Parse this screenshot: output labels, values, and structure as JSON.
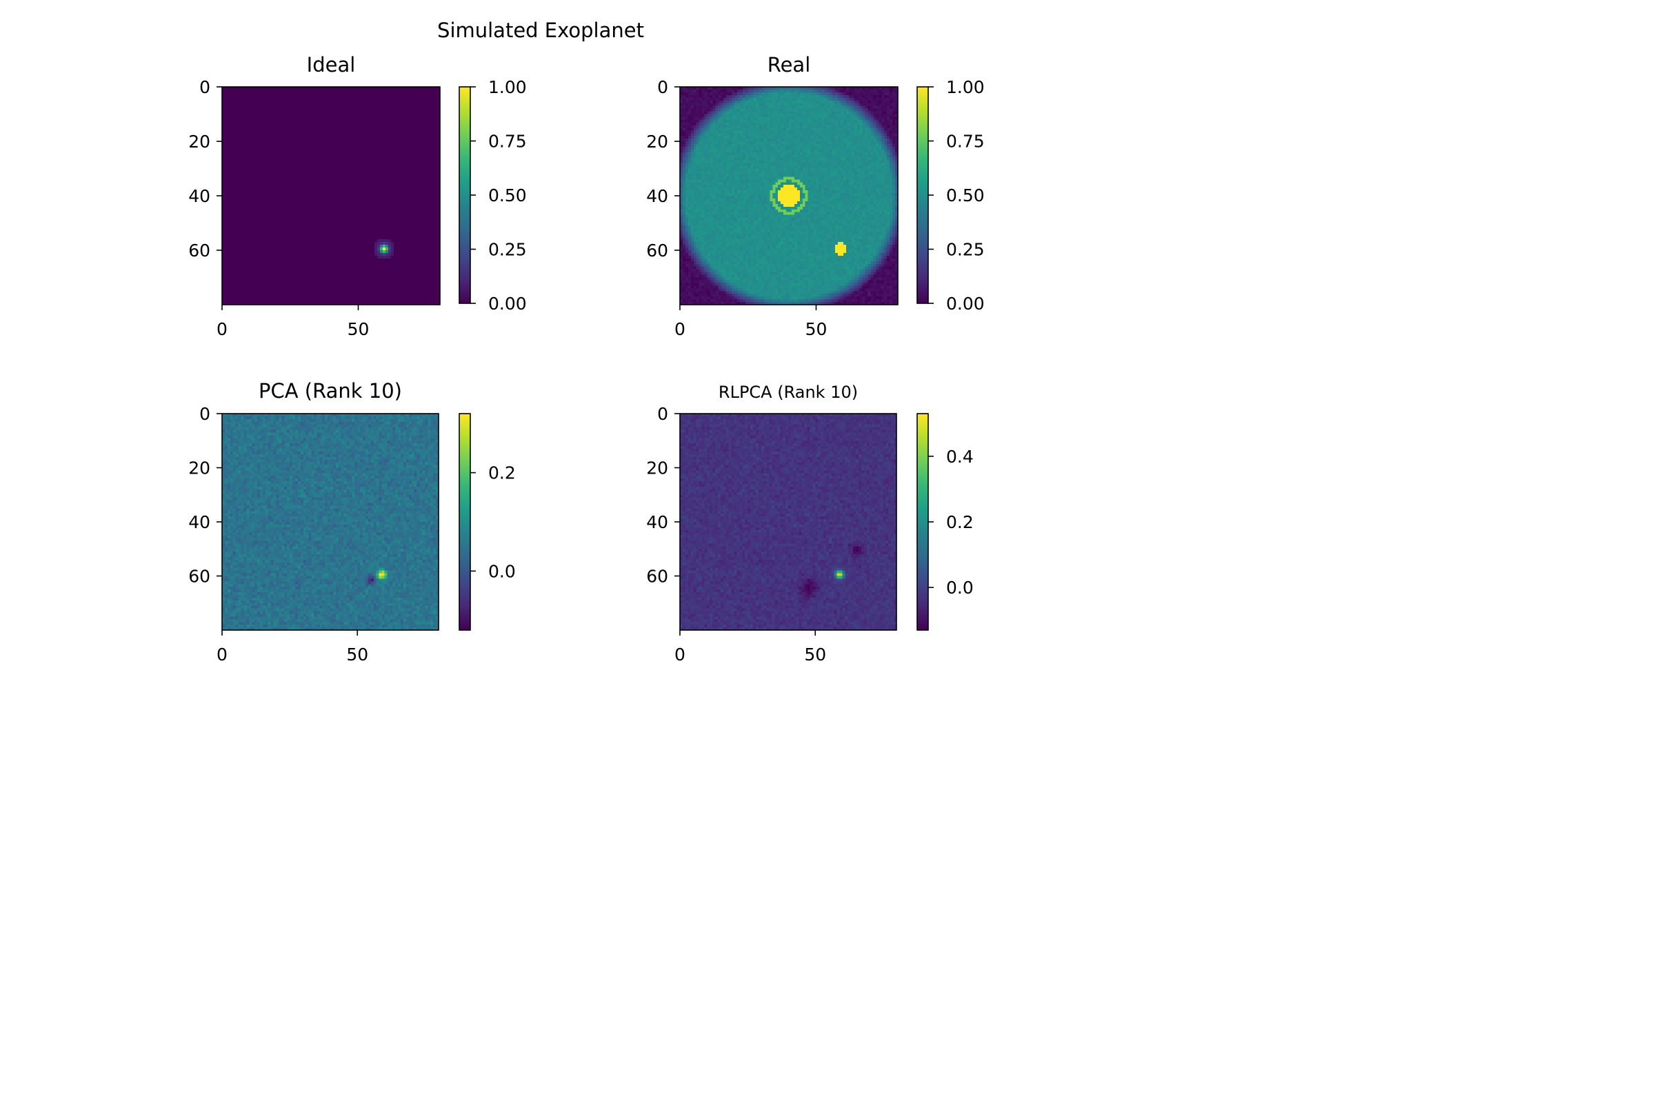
{
  "figure": {
    "suptitle": "Simulated Exoplanet"
  },
  "colormap": [
    "#440154",
    "#482878",
    "#3e4989",
    "#31688e",
    "#26828e",
    "#1f9e89",
    "#35b779",
    "#6ece58",
    "#b5de2b",
    "#fde725"
  ],
  "chart_data": [
    {
      "type": "heatmap",
      "id": "ideal",
      "title": "Ideal",
      "title_size": "large",
      "x_ticks": [
        0,
        50
      ],
      "y_ticks": [
        0,
        20,
        40,
        60
      ],
      "size": [
        80,
        80
      ],
      "colorbar": {
        "min": 0,
        "max": 1,
        "ticks": [
          "0.00",
          "0.25",
          "0.50",
          "0.75",
          "1.00"
        ],
        "tick_values": [
          0,
          0.25,
          0.5,
          0.75,
          1
        ]
      },
      "features": {
        "planet": {
          "x": 59,
          "y": 59,
          "peak": 1.0
        }
      }
    },
    {
      "type": "heatmap",
      "id": "real",
      "title": "Real",
      "title_size": "large",
      "x_ticks": [
        0,
        50
      ],
      "y_ticks": [
        0,
        20,
        40,
        60
      ],
      "size": [
        80,
        80
      ],
      "colorbar": {
        "min": 0,
        "max": 1,
        "ticks": [
          "0.00",
          "0.25",
          "0.50",
          "0.75",
          "1.00"
        ],
        "tick_values": [
          0,
          0.25,
          0.5,
          0.75,
          1
        ]
      },
      "features": {
        "star": {
          "x": 39.5,
          "y": 39.5
        },
        "planet": {
          "x": 58.5,
          "y": 59
        }
      }
    },
    {
      "type": "heatmap",
      "id": "pca",
      "title": "PCA (Rank 10)",
      "title_size": "large",
      "x_ticks": [
        0,
        50
      ],
      "y_ticks": [
        0,
        20,
        40,
        60
      ],
      "size": [
        80,
        80
      ],
      "colorbar": {
        "min": -0.12,
        "max": 0.32,
        "ticks": [
          "0.0",
          "0.2"
        ],
        "tick_values": [
          0.0,
          0.2
        ]
      },
      "features": {
        "planet": {
          "x": 58.5,
          "y": 59
        }
      }
    },
    {
      "type": "heatmap",
      "id": "rlpca",
      "title": "RLPCA (Rank 10)",
      "title_size": "small",
      "x_ticks": [
        0,
        50
      ],
      "y_ticks": [
        0,
        20,
        40,
        60
      ],
      "size": [
        80,
        80
      ],
      "colorbar": {
        "min": -0.13,
        "max": 0.53,
        "ticks": [
          "0.0",
          "0.2",
          "0.4"
        ],
        "tick_values": [
          0.0,
          0.2,
          0.4
        ]
      },
      "features": {
        "planet": {
          "x": 58.5,
          "y": 59
        }
      }
    }
  ]
}
